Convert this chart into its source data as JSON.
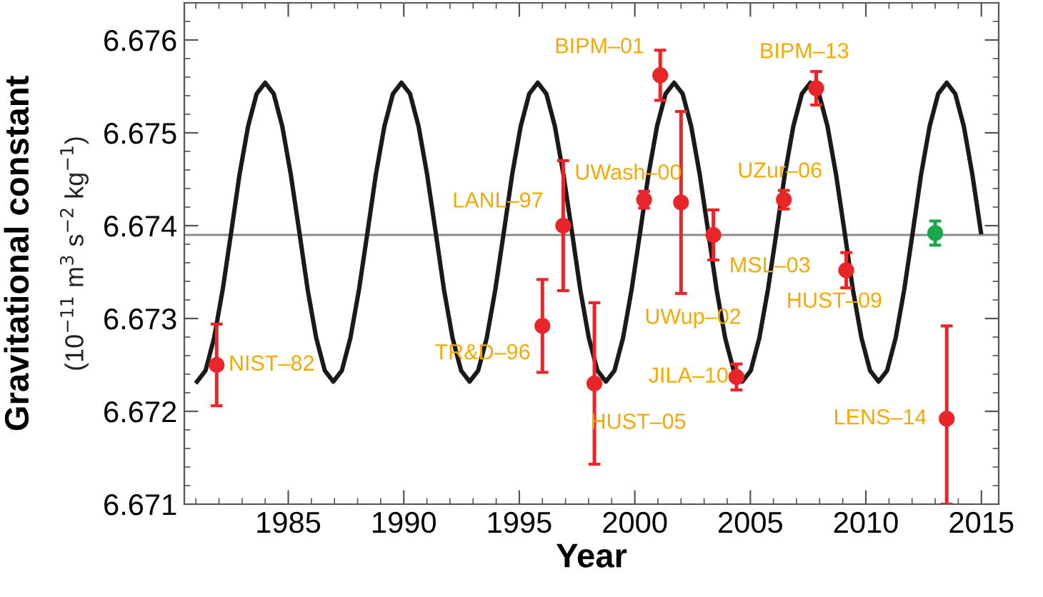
{
  "chart_data": {
    "type": "scatter",
    "xlabel": "Year",
    "ylabel": "Gravitational constant\n(10$^{−11}$ m$^{3}$ s$^{−2}$ kg$^{−1}$)",
    "xlim": [
      1980.5,
      2015.75
    ],
    "ylim": [
      6.671,
      6.6764
    ],
    "xticks": [
      1985,
      1990,
      1995,
      2000,
      2005,
      2010,
      2015
    ],
    "yticks": [
      6.671,
      6.672,
      6.673,
      6.674,
      6.675,
      6.676
    ],
    "grid": false,
    "legend": false,
    "series": [
      {
        "type": "line",
        "color": "#1a1a1a",
        "line_style": "solid",
        "marker": "none",
        "x": [
          1981.05,
          1981.42,
          1981.79,
          1982.16,
          1982.53,
          1982.89,
          1983.26,
          1983.63,
          1984.0,
          1984.37,
          1984.74,
          1985.11,
          1985.48,
          1985.84,
          1986.21,
          1986.58,
          1986.95,
          1987.32,
          1987.69,
          1988.06,
          1988.43,
          1988.79,
          1989.16,
          1989.53,
          1989.9,
          1990.27,
          1990.64,
          1991.01,
          1991.38,
          1991.74,
          1992.11,
          1992.48,
          1992.85,
          1993.22,
          1993.59,
          1993.96,
          1994.33,
          1994.69,
          1995.06,
          1995.43,
          1995.8,
          1996.17,
          1996.54,
          1996.91,
          1997.28,
          1997.64,
          1998.01,
          1998.38,
          1998.75,
          1999.12,
          1999.49,
          1999.86,
          2000.23,
          2000.59,
          2000.96,
          2001.33,
          2001.7,
          2002.07,
          2002.44,
          2002.81,
          2003.18,
          2003.54,
          2003.91,
          2004.28,
          2004.65,
          2005.02,
          2005.39,
          2005.76,
          2006.13,
          2006.49,
          2006.86,
          2007.23,
          2007.6,
          2007.97,
          2008.34,
          2008.71,
          2009.08,
          2009.44,
          2009.81,
          2010.18,
          2010.55,
          2010.92,
          2011.29,
          2011.66,
          2012.03,
          2012.39,
          2012.76,
          2013.13,
          2013.5,
          2013.87,
          2014.24,
          2014.61,
          2014.98
        ],
        "values": [
          6.67232,
          6.67244,
          6.67279,
          6.67331,
          6.67393,
          6.67455,
          6.67507,
          6.67542,
          6.67554,
          6.67542,
          6.67507,
          6.67455,
          6.67393,
          6.67331,
          6.67279,
          6.67244,
          6.67232,
          6.67244,
          6.67279,
          6.67331,
          6.67393,
          6.67455,
          6.67507,
          6.67542,
          6.67554,
          6.67542,
          6.67507,
          6.67455,
          6.67393,
          6.67331,
          6.67279,
          6.67244,
          6.67232,
          6.67244,
          6.67279,
          6.67331,
          6.67393,
          6.67455,
          6.67507,
          6.67542,
          6.67554,
          6.67542,
          6.67507,
          6.67455,
          6.67393,
          6.67331,
          6.67279,
          6.67244,
          6.67232,
          6.67244,
          6.67279,
          6.67331,
          6.67393,
          6.67455,
          6.67507,
          6.67542,
          6.67554,
          6.67542,
          6.67507,
          6.67455,
          6.67393,
          6.67331,
          6.67279,
          6.67244,
          6.67232,
          6.67244,
          6.67279,
          6.67331,
          6.67393,
          6.67455,
          6.67507,
          6.67542,
          6.67554,
          6.67542,
          6.67507,
          6.67455,
          6.67393,
          6.67331,
          6.67279,
          6.67244,
          6.67232,
          6.67244,
          6.67279,
          6.67331,
          6.67393,
          6.67455,
          6.67507,
          6.67542,
          6.67554,
          6.67542,
          6.67507,
          6.67455,
          6.67393
        ]
      },
      {
        "color": "#e8262a",
        "marker": "circle",
        "x": [
          1981.9,
          1996.0,
          1996.9,
          1998.25,
          2000.4,
          2001.1,
          2002.0,
          2003.4,
          2004.4,
          2006.45,
          2007.85,
          2009.15,
          2013.5
        ],
        "values": [
          6.6725,
          6.67292,
          6.674,
          6.6723,
          6.67428,
          6.67562,
          6.67425,
          6.6739,
          6.67237,
          6.67428,
          6.67548,
          6.67352,
          6.67192
        ],
        "errors": [
          0.00044,
          0.0005,
          0.0007,
          0.00087,
          9e-05,
          0.00027,
          0.00098,
          0.00027,
          0.00014,
          0.0001,
          0.00018,
          0.00019,
          [
            6.671,
            6.67292
          ]
        ]
      },
      {
        "color": "#1aa64a",
        "marker": "circle",
        "x": [
          2013.0
        ],
        "values": [
          6.67392
        ],
        "errors": [
          0.00013
        ]
      }
    ],
    "ref_lines": [
      {
        "axis": "y",
        "value": 6.6739,
        "color": "#8c8c8c",
        "line_style": "solid"
      }
    ],
    "annotations": [
      {
        "text": "NIST–82",
        "x": 1981.9,
        "y": 6.6725
      },
      {
        "text": "TR&D–96",
        "x": 1996.0,
        "y": 6.67292
      },
      {
        "text": "LANL–97",
        "x": 1996.9,
        "y": 6.674
      },
      {
        "text": "HUST–05",
        "x": 1998.25,
        "y": 6.6723
      },
      {
        "text": "UWash–00",
        "x": 2000.4,
        "y": 6.67428
      },
      {
        "text": "BIPM–01",
        "x": 2001.1,
        "y": 6.67562
      },
      {
        "text": "UWup–02",
        "x": 2002.0,
        "y": 6.67326
      },
      {
        "text": "MSL–03",
        "x": 2003.4,
        "y": 6.6739
      },
      {
        "text": "JILA–10",
        "x": 2004.4,
        "y": 6.67237
      },
      {
        "text": "UZur–06",
        "x": 2006.45,
        "y": 6.67428
      },
      {
        "text": "BIPM–13",
        "x": 2007.85,
        "y": 6.67548
      },
      {
        "text": "HUST–09",
        "x": 2009.15,
        "y": 6.67352
      },
      {
        "text": "LENS–14",
        "x": 2013.5,
        "y": 6.67192
      }
    ]
  }
}
